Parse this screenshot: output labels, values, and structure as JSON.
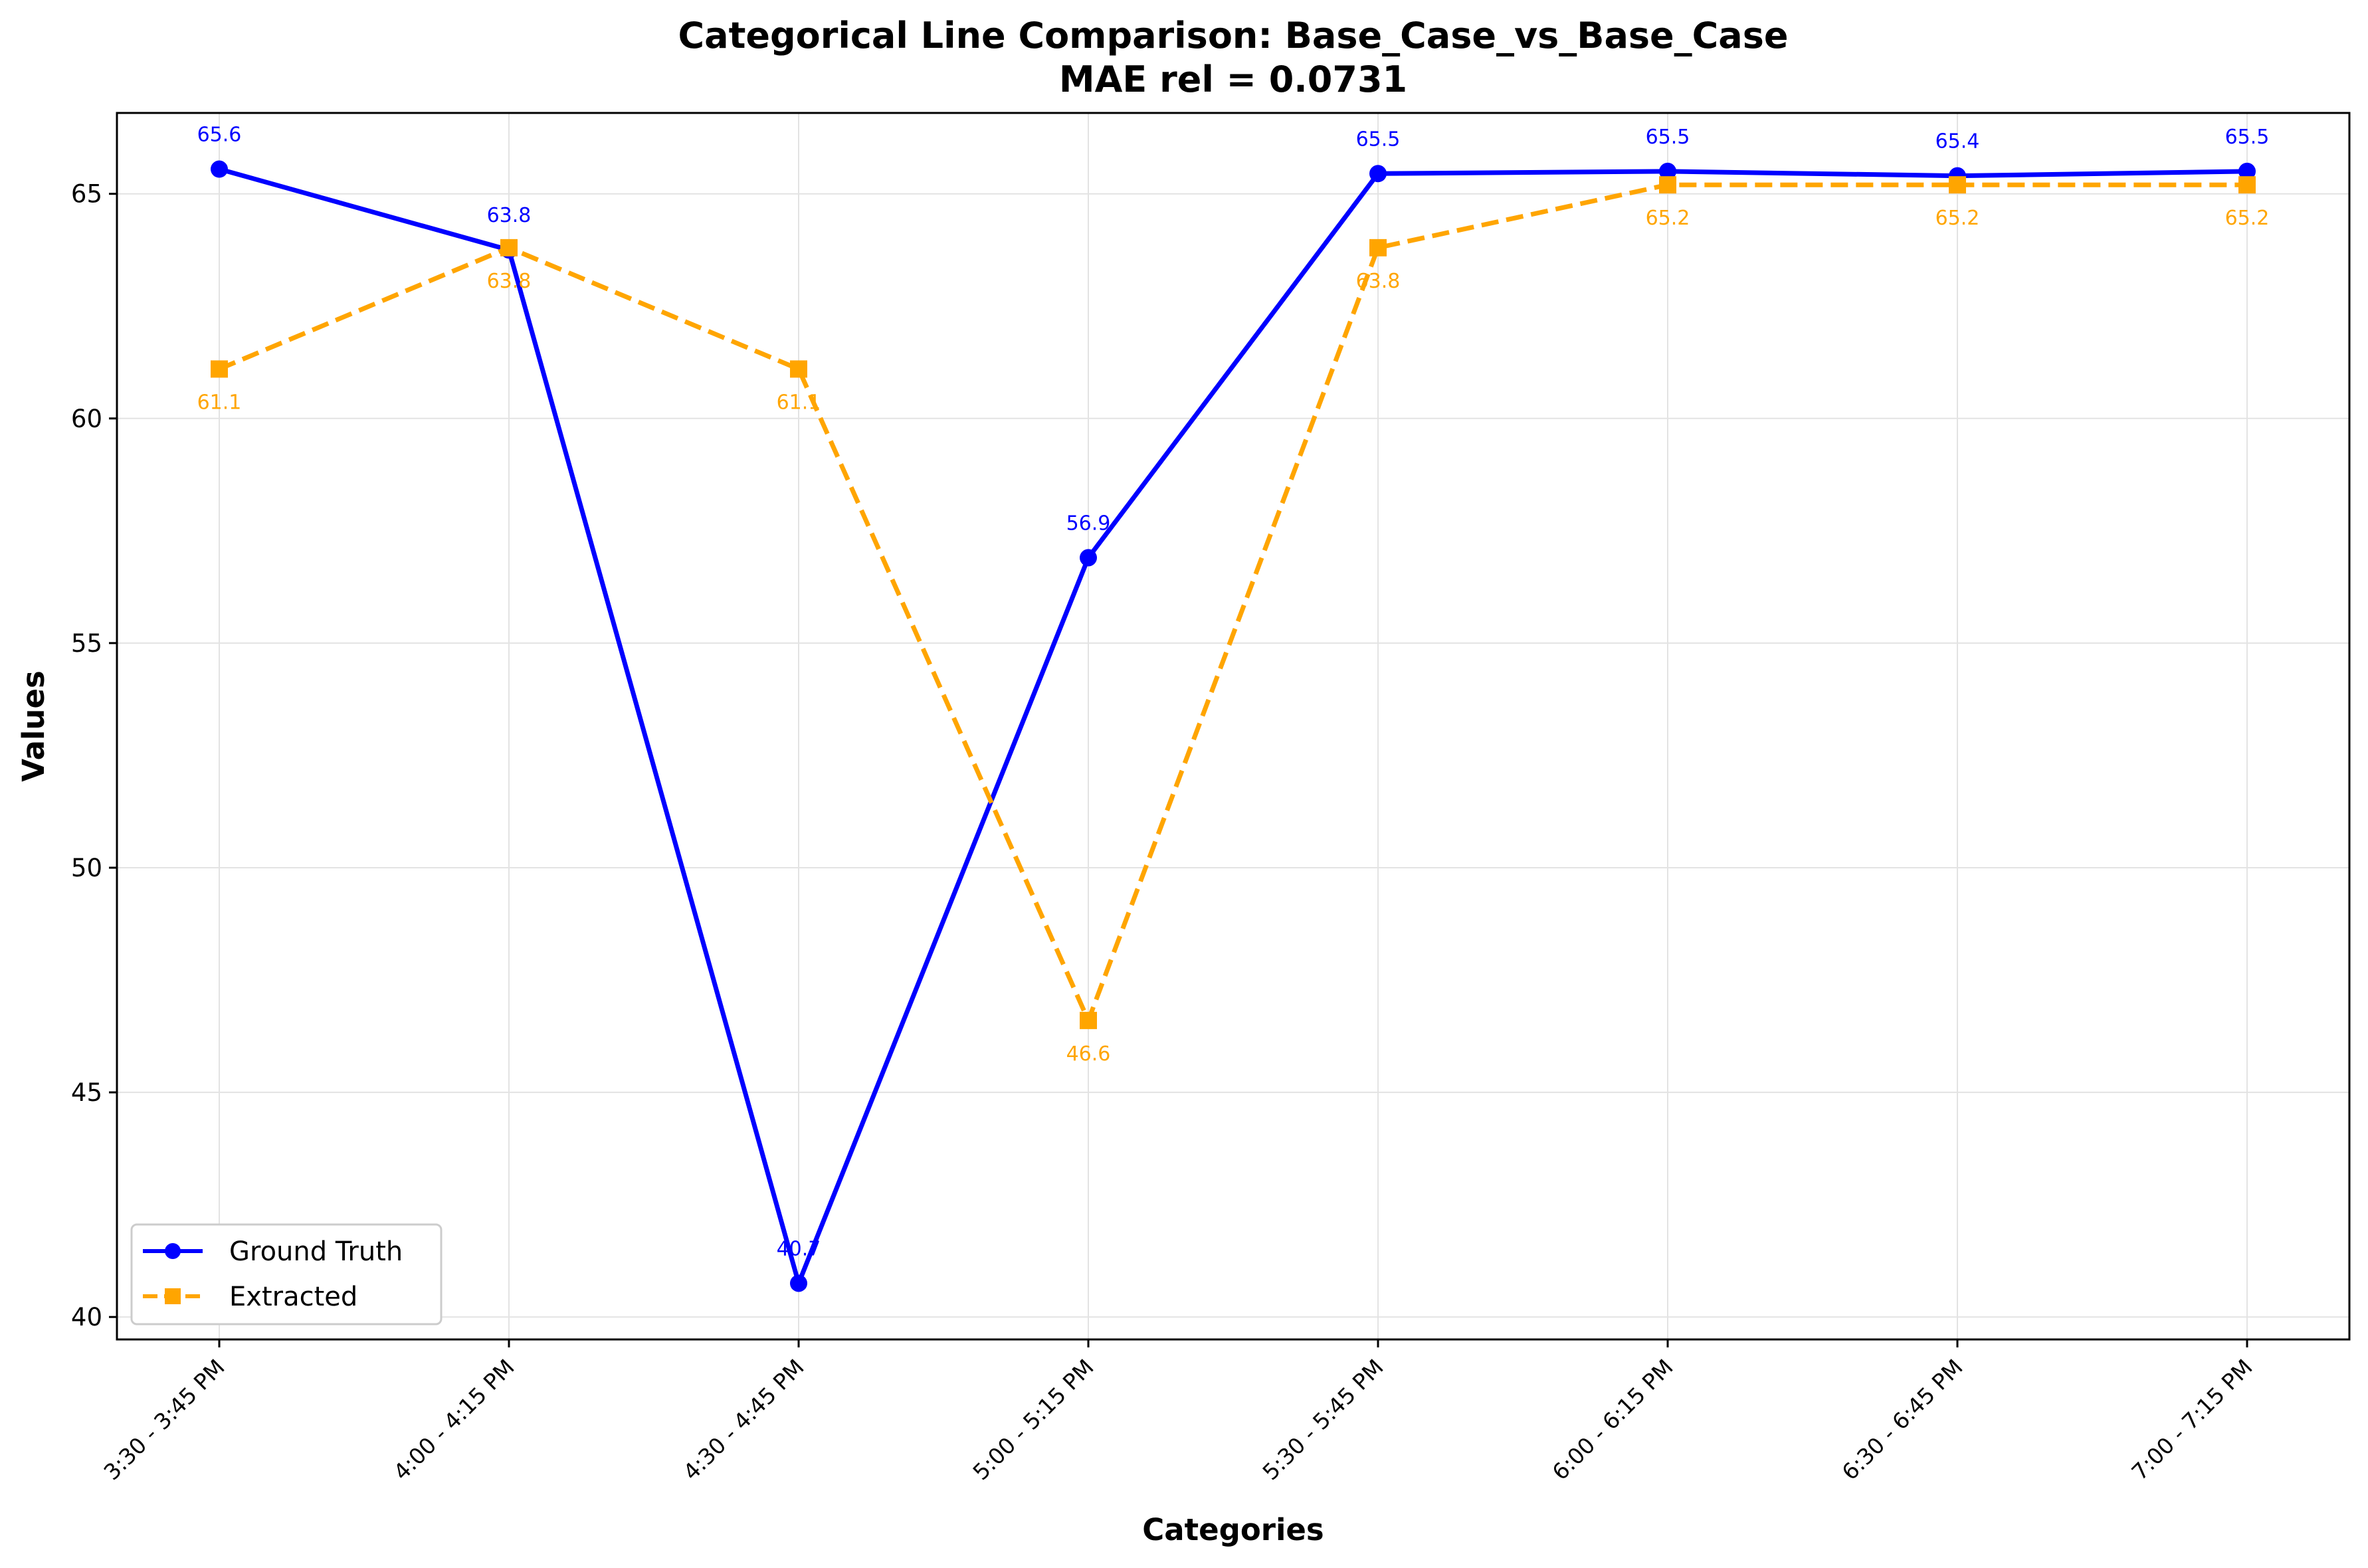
{
  "chart_data": {
    "type": "line",
    "title": "Categorical Line Comparison: Base_Case_vs_Base_Case",
    "subtitle": "MAE rel = 0.0731",
    "xlabel": "Categories",
    "ylabel": "Values",
    "categories": [
      "3:30 - 3:45 PM",
      "4:00 - 4:15 PM",
      "4:30 - 4:45 PM",
      "5:00 - 5:15 PM",
      "5:30 - 5:45 PM",
      "6:00 - 6:15 PM",
      "6:30 - 6:45 PM",
      "7:00 - 7:15 PM"
    ],
    "ylim": [
      39.5,
      66.8
    ],
    "yticks": [
      40,
      45,
      50,
      55,
      60,
      65
    ],
    "grid": true,
    "legend_position": "lower-left",
    "series": [
      {
        "name": "Ground Truth",
        "color": "#0000ff",
        "line_style": "solid",
        "marker": "circle",
        "values": [
          65.55,
          63.75,
          40.75,
          56.9,
          65.45,
          65.5,
          65.4,
          65.5
        ],
        "labels": [
          "65.6",
          "63.8",
          "40.7",
          "56.9",
          "65.5",
          "65.5",
          "65.4",
          "65.5"
        ]
      },
      {
        "name": "Extracted",
        "color": "#ffa500",
        "line_style": "dashed",
        "marker": "square",
        "values": [
          61.1,
          63.8,
          61.1,
          46.6,
          63.8,
          65.2,
          65.2,
          65.2
        ],
        "labels": [
          "61.1",
          "63.8",
          "61.1",
          "46.6",
          "63.8",
          "65.2",
          "65.2",
          "65.2"
        ]
      }
    ]
  }
}
